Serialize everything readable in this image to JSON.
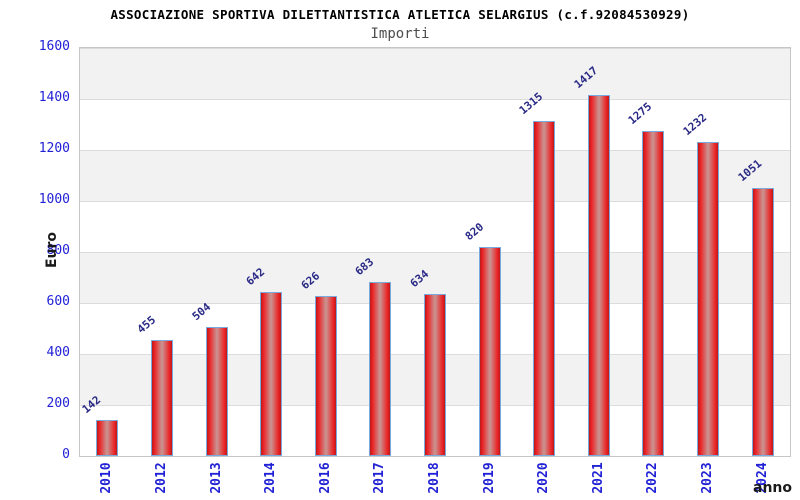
{
  "header": {
    "title": "ASSOCIAZIONE SPORTIVA DILETTANTISTICA ATLETICA SELARGIUS (c.f.92084530929)",
    "subtitle": "Importi"
  },
  "chart_data": {
    "type": "bar",
    "title": "Importi",
    "categories": [
      "2010",
      "2012",
      "2013",
      "2014",
      "2016",
      "2017",
      "2018",
      "2019",
      "2020",
      "2021",
      "2022",
      "2023",
      "2024"
    ],
    "values": [
      142,
      455,
      504,
      642,
      626,
      683,
      634,
      820,
      1315,
      1417,
      1275,
      1232,
      1051
    ],
    "xlabel": "anno",
    "ylabel": "Euro",
    "ylim": [
      0,
      1600
    ],
    "ytick_step": 200,
    "yticks": [
      0,
      200,
      400,
      600,
      800,
      1000,
      1200,
      1400,
      1600
    ],
    "legend": "none",
    "grid": "horizontal-bands",
    "value_labels_rotation_deg": -40,
    "x_labels_rotation_deg": -90,
    "colors": {
      "bar_fill_edge": "#b81a1a",
      "bar_fill_bright": "#ec2124",
      "bar_fill_center": "#c99693",
      "bar_border": "#79aade",
      "tick_label": "#2121d6",
      "value_label": "#2b2b87",
      "band_gray": "#f2f2f2",
      "gridline": "#dcdcdc",
      "plot_border": "#c6c6c6",
      "title": "#000000",
      "subtitle": "#4d4d4d"
    }
  }
}
